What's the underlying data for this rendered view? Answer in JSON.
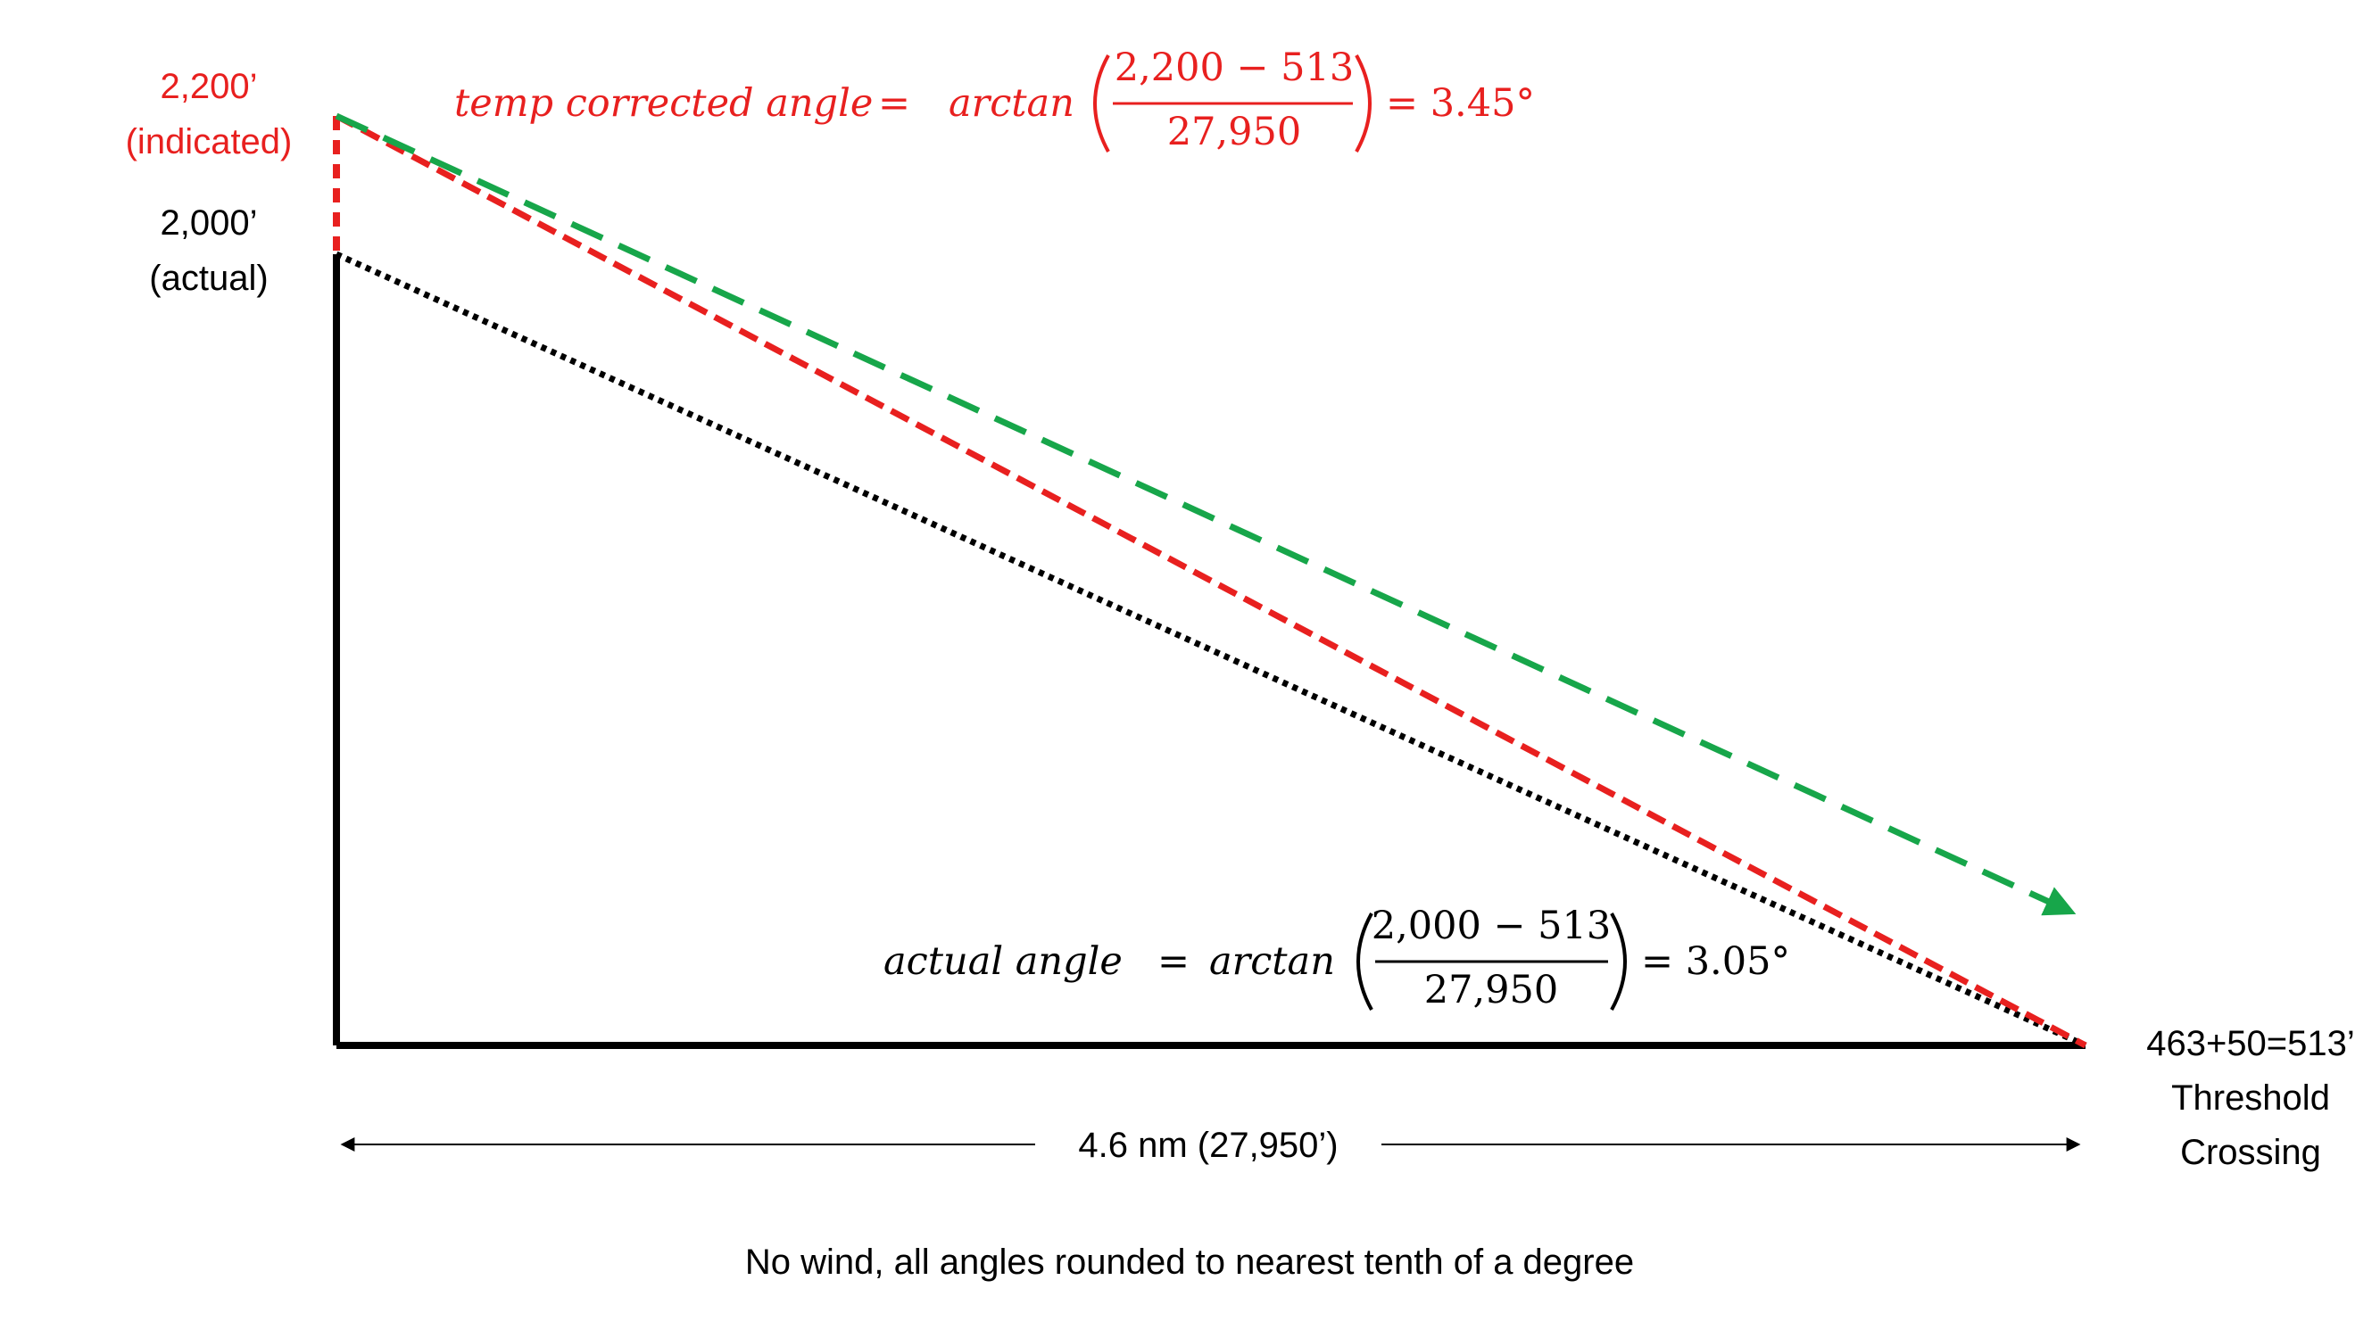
{
  "altitudes": {
    "indicated_value": "2,200’",
    "indicated_note": "(indicated)",
    "actual_value": "2,000’",
    "actual_note": "(actual)"
  },
  "temp_corrected_equation": {
    "lhs": "temp corrected angle",
    "eq": "=",
    "func": "arctan",
    "numerator": "2,200 − 513",
    "denominator": "27,950",
    "rhs": "= 3.45°"
  },
  "actual_equation": {
    "lhs": "actual angle",
    "eq": "=",
    "func": "arctan",
    "numerator": "2,000 − 513",
    "denominator": "27,950",
    "rhs": "= 3.05°"
  },
  "threshold": {
    "line1": "463+50=513’",
    "line2": "Threshold",
    "line3": "Crossing"
  },
  "distance_label": "4.6 nm (27,950’)",
  "footnote": "No wind, all angles rounded to nearest tenth of a degree",
  "colors": {
    "red": "#e8201f",
    "green": "#17a64a",
    "black": "#000000"
  }
}
